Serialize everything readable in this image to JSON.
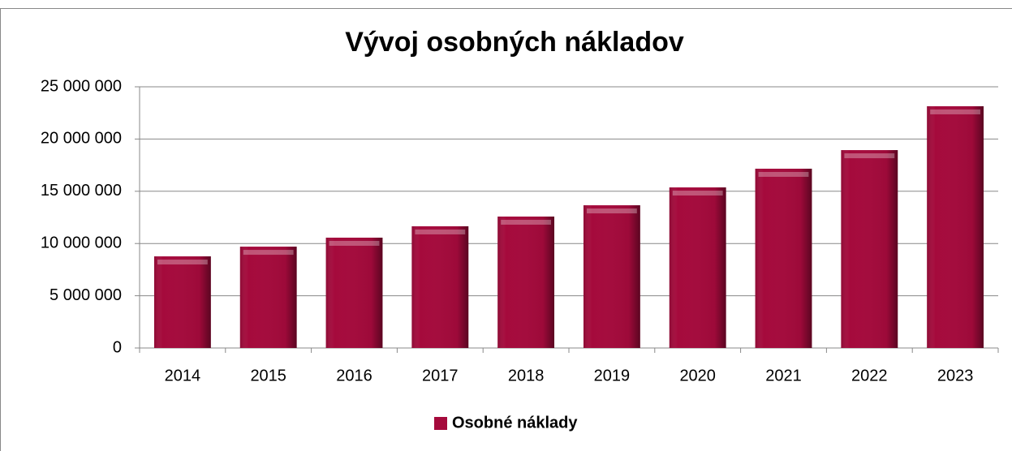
{
  "chart_data": {
    "type": "bar",
    "title": "Vývoj osobných nákladov",
    "categories": [
      "2014",
      "2015",
      "2016",
      "2017",
      "2018",
      "2019",
      "2020",
      "2021",
      "2022",
      "2023"
    ],
    "series": [
      {
        "name": "Osobné náklady",
        "color": "#a50a3c",
        "values": [
          8770000,
          9700000,
          10560000,
          11650000,
          12580000,
          13660000,
          15370000,
          17160000,
          18940000,
          23140000
        ]
      }
    ],
    "ylim": [
      0,
      25000000
    ],
    "yticks": [
      0,
      {
        "value": 5000000,
        "label": "5 000 000"
      },
      {
        "value": 10000000,
        "label": "10 000 000"
      },
      {
        "value": 15000000,
        "label": "15 000 000"
      },
      {
        "value": 20000000,
        "label": "20 000 000"
      },
      {
        "value": 25000000,
        "label": "25 000 000"
      }
    ],
    "grid": true,
    "legend": "bottom"
  }
}
